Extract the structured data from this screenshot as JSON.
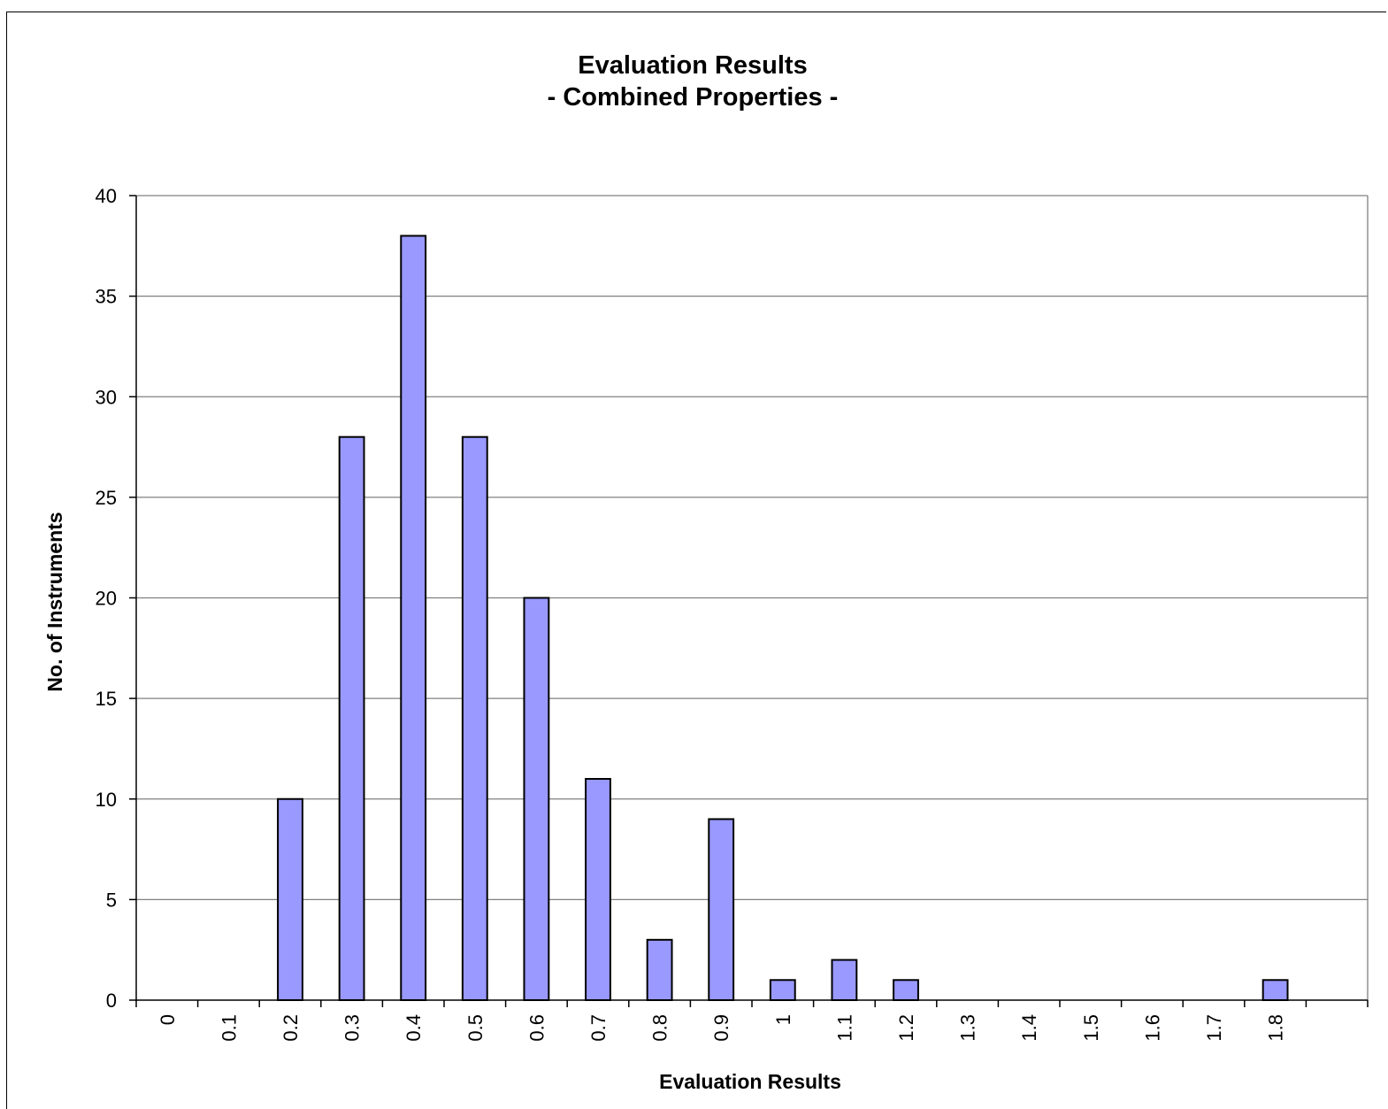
{
  "chart_data": {
    "type": "bar",
    "title": [
      "Evaluation Results",
      "- Combined Properties -"
    ],
    "xlabel": "Evaluation Results",
    "ylabel": "No. of Instruments",
    "categories": [
      "0",
      "0.1",
      "0.2",
      "0.3",
      "0.4",
      "0.5",
      "0.6",
      "0.7",
      "0.8",
      "0.9",
      "1",
      "1.1",
      "1.2",
      "1.3",
      "1.4",
      "1.5",
      "1.6",
      "1.7",
      "1.8",
      ""
    ],
    "values": [
      0,
      0,
      10,
      28,
      38,
      28,
      20,
      11,
      3,
      9,
      1,
      2,
      1,
      0,
      0,
      0,
      0,
      0,
      1,
      0
    ],
    "ylim": [
      0,
      40
    ],
    "yticks": [
      0,
      5,
      10,
      15,
      20,
      25,
      30,
      35,
      40
    ],
    "grid": true,
    "legend": "none",
    "colors": {
      "bar": "#9999ff",
      "bar_edge": "#000000",
      "grid": "#808080"
    }
  }
}
